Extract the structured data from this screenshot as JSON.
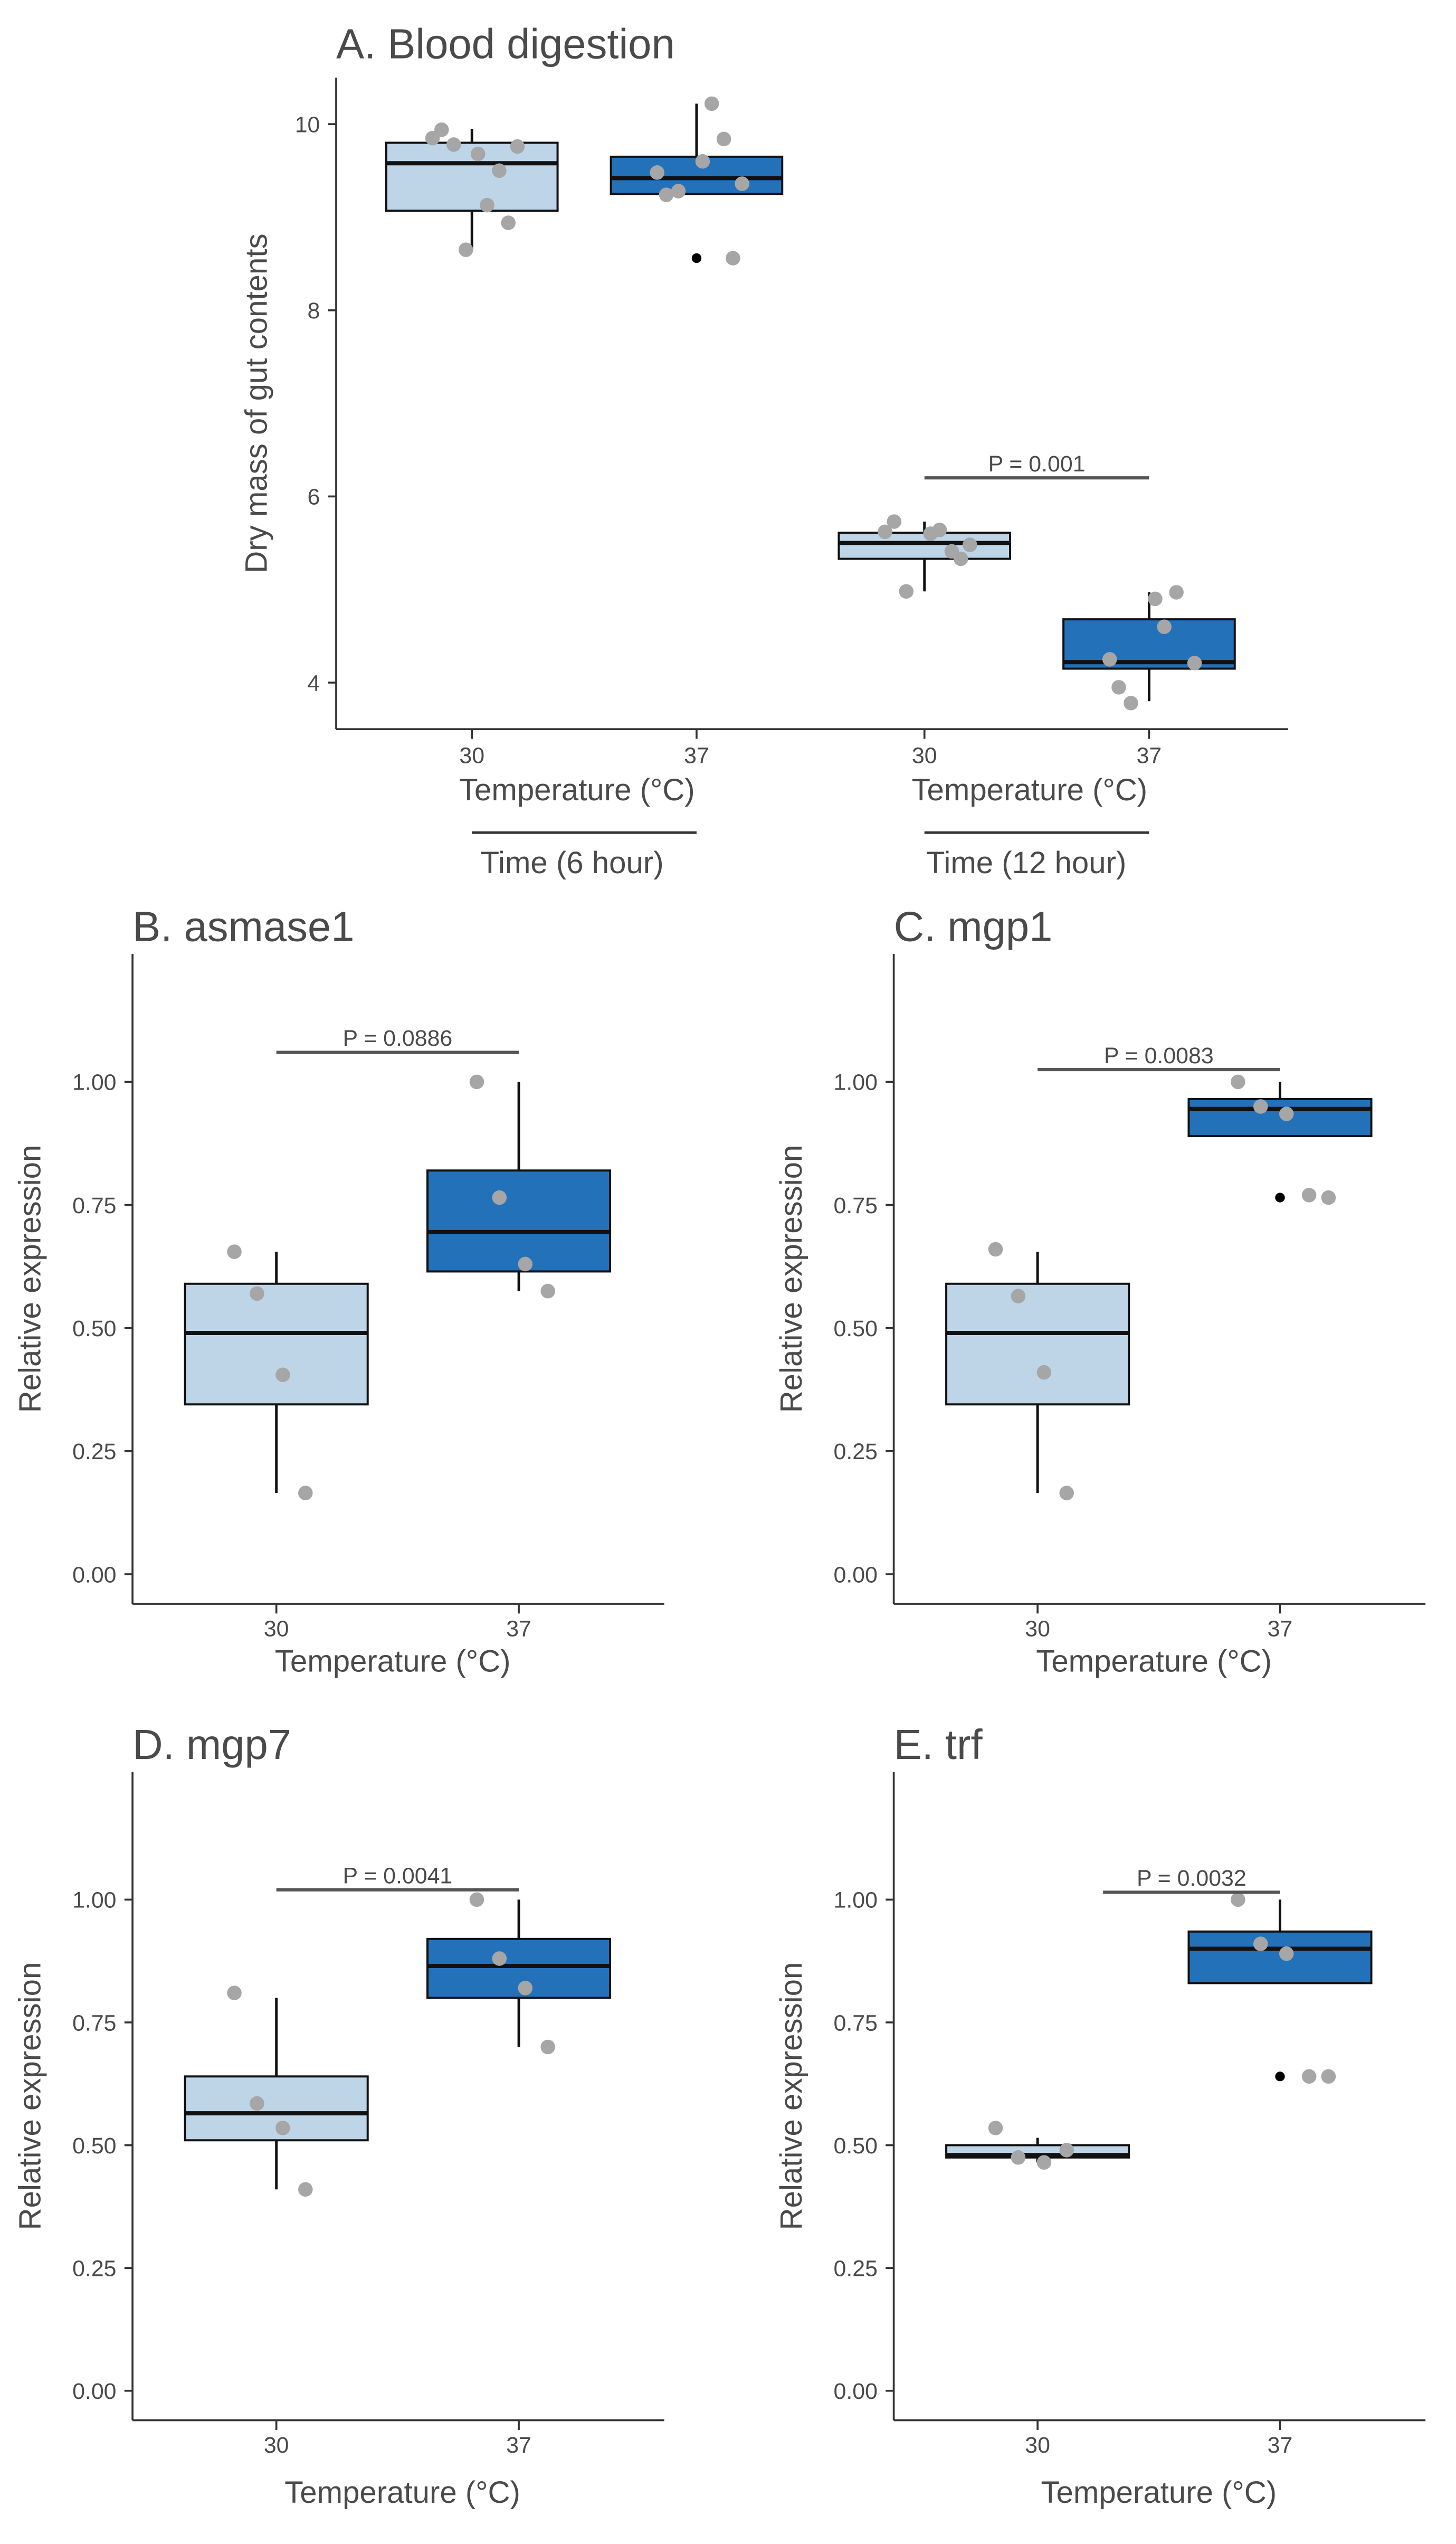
{
  "colors": {
    "box_light": "#bed5e8",
    "box_dark": "#2371b9",
    "jitter_point": "#a6a6a6",
    "outlier": "#000000",
    "axis": "#333333",
    "text": "#4a4a4a"
  },
  "chart_data": [
    {
      "id": "A",
      "type": "boxplot",
      "title": "A. Blood digestion",
      "ylabel": "Dry mass of gut contents",
      "ylim": [
        3.5,
        10.5
      ],
      "yticks": [
        4,
        6,
        8,
        10
      ],
      "tick_labels": [
        "4",
        "6",
        "8",
        "10"
      ],
      "categories": [
        "30",
        "37",
        "30",
        "37"
      ],
      "xlabels": [
        "Temperature (°C)",
        "Temperature (°C)"
      ],
      "groups": [
        "Time (6 hour)",
        "Time (12 hour)"
      ],
      "boxes": [
        {
          "x": "30",
          "group": "Time (6 hour)",
          "fill": "light",
          "q1": 9.07,
          "median": 9.58,
          "q3": 9.8,
          "whisker_low": 8.65,
          "whisker_high": 9.95,
          "points": [
            9.85,
            9.78,
            9.68,
            9.5,
            9.76,
            9.94,
            9.13,
            8.94,
            8.65
          ],
          "outliers": []
        },
        {
          "x": "37",
          "group": "Time (6 hour)",
          "fill": "dark",
          "q1": 9.25,
          "median": 9.42,
          "q3": 9.65,
          "whisker_low": 9.25,
          "whisker_high": 10.22,
          "points": [
            9.48,
            9.28,
            9.6,
            9.84,
            9.36,
            9.24,
            10.22,
            8.56
          ],
          "outliers": [
            8.56
          ]
        },
        {
          "x": "30",
          "group": "Time (12 hour)",
          "fill": "light",
          "q1": 5.33,
          "median": 5.5,
          "q3": 5.61,
          "whisker_low": 4.98,
          "whisker_high": 5.73,
          "points": [
            5.62,
            4.98,
            5.6,
            5.41,
            5.48,
            5.73,
            5.64,
            5.33
          ],
          "outliers": []
        },
        {
          "x": "37",
          "group": "Time (12 hour)",
          "fill": "dark",
          "q1": 4.15,
          "median": 4.22,
          "q3": 4.68,
          "whisker_low": 3.8,
          "whisker_high": 4.97,
          "points": [
            4.25,
            3.78,
            4.9,
            4.97,
            4.21,
            3.95,
            4.6
          ],
          "outliers": []
        }
      ],
      "annotation": {
        "text": "P = 0.001",
        "from": 2,
        "to": 3,
        "y": 6.2
      }
    },
    {
      "id": "B",
      "type": "boxplot",
      "title": "B.  asmase1",
      "ylabel": "Relative expression",
      "ylim": [
        -0.06,
        1.26
      ],
      "yticks": [
        0,
        0.25,
        0.5,
        0.75,
        1
      ],
      "tick_labels": [
        "0.00",
        "0.25",
        "0.50",
        "0.75",
        "1.00"
      ],
      "categories": [
        "30",
        "37"
      ],
      "xlabels": [
        "Temperature (°C)"
      ],
      "boxes": [
        {
          "x": "30",
          "fill": "light",
          "q1": 0.345,
          "median": 0.49,
          "q3": 0.59,
          "whisker_low": 0.165,
          "whisker_high": 0.655,
          "points": [
            0.655,
            0.57,
            0.405,
            0.165
          ],
          "outliers": []
        },
        {
          "x": "37",
          "fill": "dark",
          "q1": 0.615,
          "median": 0.695,
          "q3": 0.82,
          "whisker_low": 0.575,
          "whisker_high": 1.0,
          "points": [
            1.0,
            0.765,
            0.63,
            0.575
          ],
          "outliers": []
        }
      ],
      "annotation": {
        "text": "P = 0.0886",
        "from": 0,
        "to": 1,
        "y": 1.06
      }
    },
    {
      "id": "C",
      "type": "boxplot",
      "title": "C.  mgp1",
      "ylabel": "Relative expression",
      "ylim": [
        -0.06,
        1.26
      ],
      "yticks": [
        0,
        0.25,
        0.5,
        0.75,
        1
      ],
      "tick_labels": [
        "0.00",
        "0.25",
        "0.50",
        "0.75",
        "1.00"
      ],
      "categories": [
        "30",
        "37"
      ],
      "xlabels": [
        "Temperature (°C)"
      ],
      "boxes": [
        {
          "x": "30",
          "fill": "light",
          "q1": 0.345,
          "median": 0.49,
          "q3": 0.59,
          "whisker_low": 0.165,
          "whisker_high": 0.655,
          "points": [
            0.66,
            0.565,
            0.41,
            0.165
          ],
          "outliers": []
        },
        {
          "x": "37",
          "fill": "dark",
          "q1": 0.89,
          "median": 0.945,
          "q3": 0.965,
          "whisker_low": 0.89,
          "whisker_high": 1.0,
          "points": [
            1.0,
            0.95,
            0.935,
            0.77,
            0.765
          ],
          "outliers": [
            0.765
          ]
        }
      ],
      "annotation": {
        "text": "P = 0.0083",
        "from": 0,
        "to": 1,
        "y": 1.025
      }
    },
    {
      "id": "D",
      "type": "boxplot",
      "title": "D.  mgp7",
      "ylabel": "Relative expression",
      "ylim": [
        -0.06,
        1.26
      ],
      "yticks": [
        0,
        0.25,
        0.5,
        0.75,
        1
      ],
      "tick_labels": [
        "0.00",
        "0.25",
        "0.50",
        "0.75",
        "1.00"
      ],
      "categories": [
        "30",
        "37"
      ],
      "xlabels": [
        "Temperature (°C)"
      ],
      "boxes": [
        {
          "x": "30",
          "fill": "light",
          "q1": 0.51,
          "median": 0.565,
          "q3": 0.64,
          "whisker_low": 0.41,
          "whisker_high": 0.8,
          "points": [
            0.81,
            0.585,
            0.535,
            0.41
          ],
          "outliers": []
        },
        {
          "x": "37",
          "fill": "dark",
          "q1": 0.8,
          "median": 0.865,
          "q3": 0.92,
          "whisker_low": 0.7,
          "whisker_high": 1.0,
          "points": [
            1.0,
            0.88,
            0.82,
            0.7
          ],
          "outliers": []
        }
      ],
      "annotation": {
        "text": "P = 0.0041",
        "from": 0,
        "to": 1,
        "y": 1.02
      }
    },
    {
      "id": "E",
      "type": "boxplot",
      "title": "E.  trf",
      "ylabel": "Relative expression",
      "ylim": [
        -0.06,
        1.26
      ],
      "yticks": [
        0,
        0.25,
        0.5,
        0.75,
        1
      ],
      "tick_labels": [
        "0.00",
        "0.25",
        "0.50",
        "0.75",
        "1.00"
      ],
      "categories": [
        "30",
        "37"
      ],
      "xlabels": [
        "Temperature (°C)"
      ],
      "boxes": [
        {
          "x": "30",
          "fill": "light",
          "q1": 0.475,
          "median": 0.48,
          "q3": 0.5,
          "whisker_low": 0.465,
          "whisker_high": 0.515,
          "points": [
            0.535,
            0.475,
            0.465,
            0.49
          ],
          "outliers": []
        },
        {
          "x": "37",
          "fill": "dark",
          "q1": 0.83,
          "median": 0.9,
          "q3": 0.935,
          "whisker_low": 0.83,
          "whisker_high": 1.0,
          "points": [
            1.0,
            0.91,
            0.89,
            0.64,
            0.64
          ],
          "outliers": [
            0.64
          ]
        }
      ],
      "annotation": {
        "text": "P = 0.0032",
        "from": 0.27,
        "to": 1,
        "y": 1.015
      }
    }
  ]
}
